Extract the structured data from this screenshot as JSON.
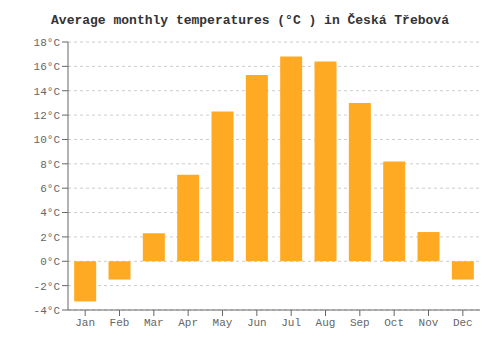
{
  "chart_data": {
    "type": "bar",
    "title": "Average monthly temperatures (°C ) in Česká Třebová",
    "categories": [
      "Jan",
      "Feb",
      "Mar",
      "Apr",
      "May",
      "Jun",
      "Jul",
      "Aug",
      "Sep",
      "Oct",
      "Nov",
      "Dec"
    ],
    "values": [
      -3.3,
      -1.5,
      2.3,
      7.1,
      12.3,
      15.3,
      16.8,
      16.4,
      13.0,
      8.2,
      2.4,
      -1.5
    ],
    "color": "#FFAA22",
    "ylim": [
      -4,
      18
    ],
    "yticks": [
      {
        "value": -4,
        "label": "-4°C"
      },
      {
        "value": -2,
        "label": "-2°C"
      },
      {
        "value": 0,
        "label": "0°C"
      },
      {
        "value": 2,
        "label": "2°C"
      },
      {
        "value": 4,
        "label": "4°C"
      },
      {
        "value": 6,
        "label": "6°C"
      },
      {
        "value": 8,
        "label": "8°C"
      },
      {
        "value": 10,
        "label": "10°C"
      },
      {
        "value": 12,
        "label": "12°C"
      },
      {
        "value": 14,
        "label": "14°C"
      },
      {
        "value": 16,
        "label": "16°C"
      },
      {
        "value": 18,
        "label": "18°C"
      }
    ],
    "grid": true
  }
}
